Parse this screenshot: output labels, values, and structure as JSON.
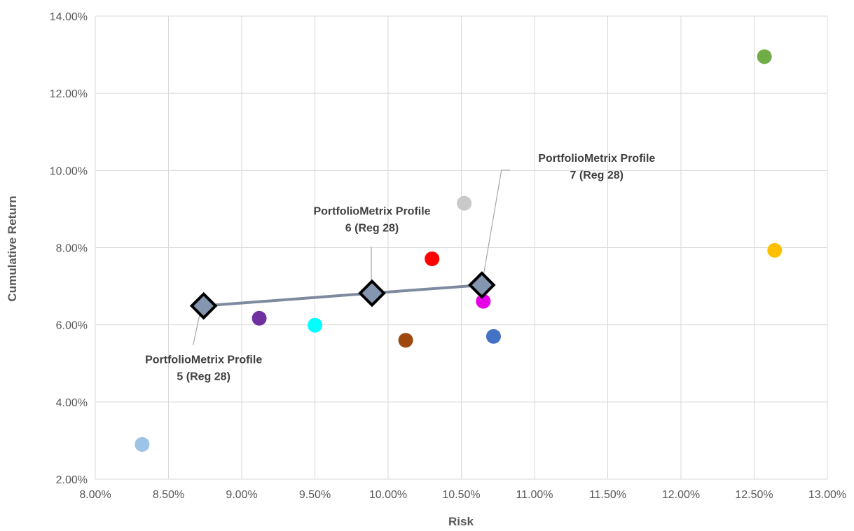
{
  "chart_data": {
    "type": "scatter",
    "title": "",
    "xlabel": "Risk",
    "ylabel": "Cumulative Return",
    "xlim": [
      0.08,
      0.13
    ],
    "ylim": [
      0.02,
      0.14
    ],
    "x_ticks": [
      {
        "value": 0.08,
        "label": "8.00%"
      },
      {
        "value": 0.085,
        "label": "8.50%"
      },
      {
        "value": 0.09,
        "label": "9.00%"
      },
      {
        "value": 0.095,
        "label": "9.50%"
      },
      {
        "value": 0.1,
        "label": "10.00%"
      },
      {
        "value": 0.105,
        "label": "10.50%"
      },
      {
        "value": 0.11,
        "label": "11.00%"
      },
      {
        "value": 0.115,
        "label": "11.50%"
      },
      {
        "value": 0.12,
        "label": "12.00%"
      },
      {
        "value": 0.125,
        "label": "12.50%"
      },
      {
        "value": 0.13,
        "label": "13.00%"
      }
    ],
    "y_ticks": [
      {
        "value": 0.02,
        "label": "2.00%"
      },
      {
        "value": 0.04,
        "label": "4.00%"
      },
      {
        "value": 0.06,
        "label": "6.00%"
      },
      {
        "value": 0.08,
        "label": "8.00%"
      },
      {
        "value": 0.1,
        "label": "10.00%"
      },
      {
        "value": 0.12,
        "label": "12.00%"
      },
      {
        "value": 0.14,
        "label": "14.00%"
      }
    ],
    "grid": true,
    "line_color": "#7f8a9f",
    "profiles": [
      {
        "x": 0.0874,
        "y": 0.0649,
        "label_lines": [
          "PortfolioMetrix Profile",
          "5 (Reg 28)"
        ]
      },
      {
        "x": 0.0989,
        "y": 0.0682,
        "label_lines": [
          "PortfolioMetrix Profile",
          "6 (Reg 28)"
        ]
      },
      {
        "x": 0.1064,
        "y": 0.0703,
        "label_lines": [
          "PortfolioMetrix Profile",
          "7 (Reg 28)"
        ]
      }
    ],
    "points": [
      {
        "x": 0.0832,
        "y": 0.029,
        "color": "#9dc3e6"
      },
      {
        "x": 0.0912,
        "y": 0.0617,
        "color": "#7030a0"
      },
      {
        "x": 0.095,
        "y": 0.0599,
        "color": "#00ffff"
      },
      {
        "x": 0.1012,
        "y": 0.056,
        "color": "#9e480e"
      },
      {
        "x": 0.103,
        "y": 0.0771,
        "color": "#ff0000"
      },
      {
        "x": 0.1052,
        "y": 0.0915,
        "color": "#c9c9c9"
      },
      {
        "x": 0.1065,
        "y": 0.0661,
        "color": "#e600e6"
      },
      {
        "x": 0.1072,
        "y": 0.057,
        "color": "#4472c4"
      },
      {
        "x": 0.1257,
        "y": 0.1295,
        "color": "#70ad47"
      },
      {
        "x": 0.1264,
        "y": 0.0793,
        "color": "#ffc000"
      }
    ]
  }
}
